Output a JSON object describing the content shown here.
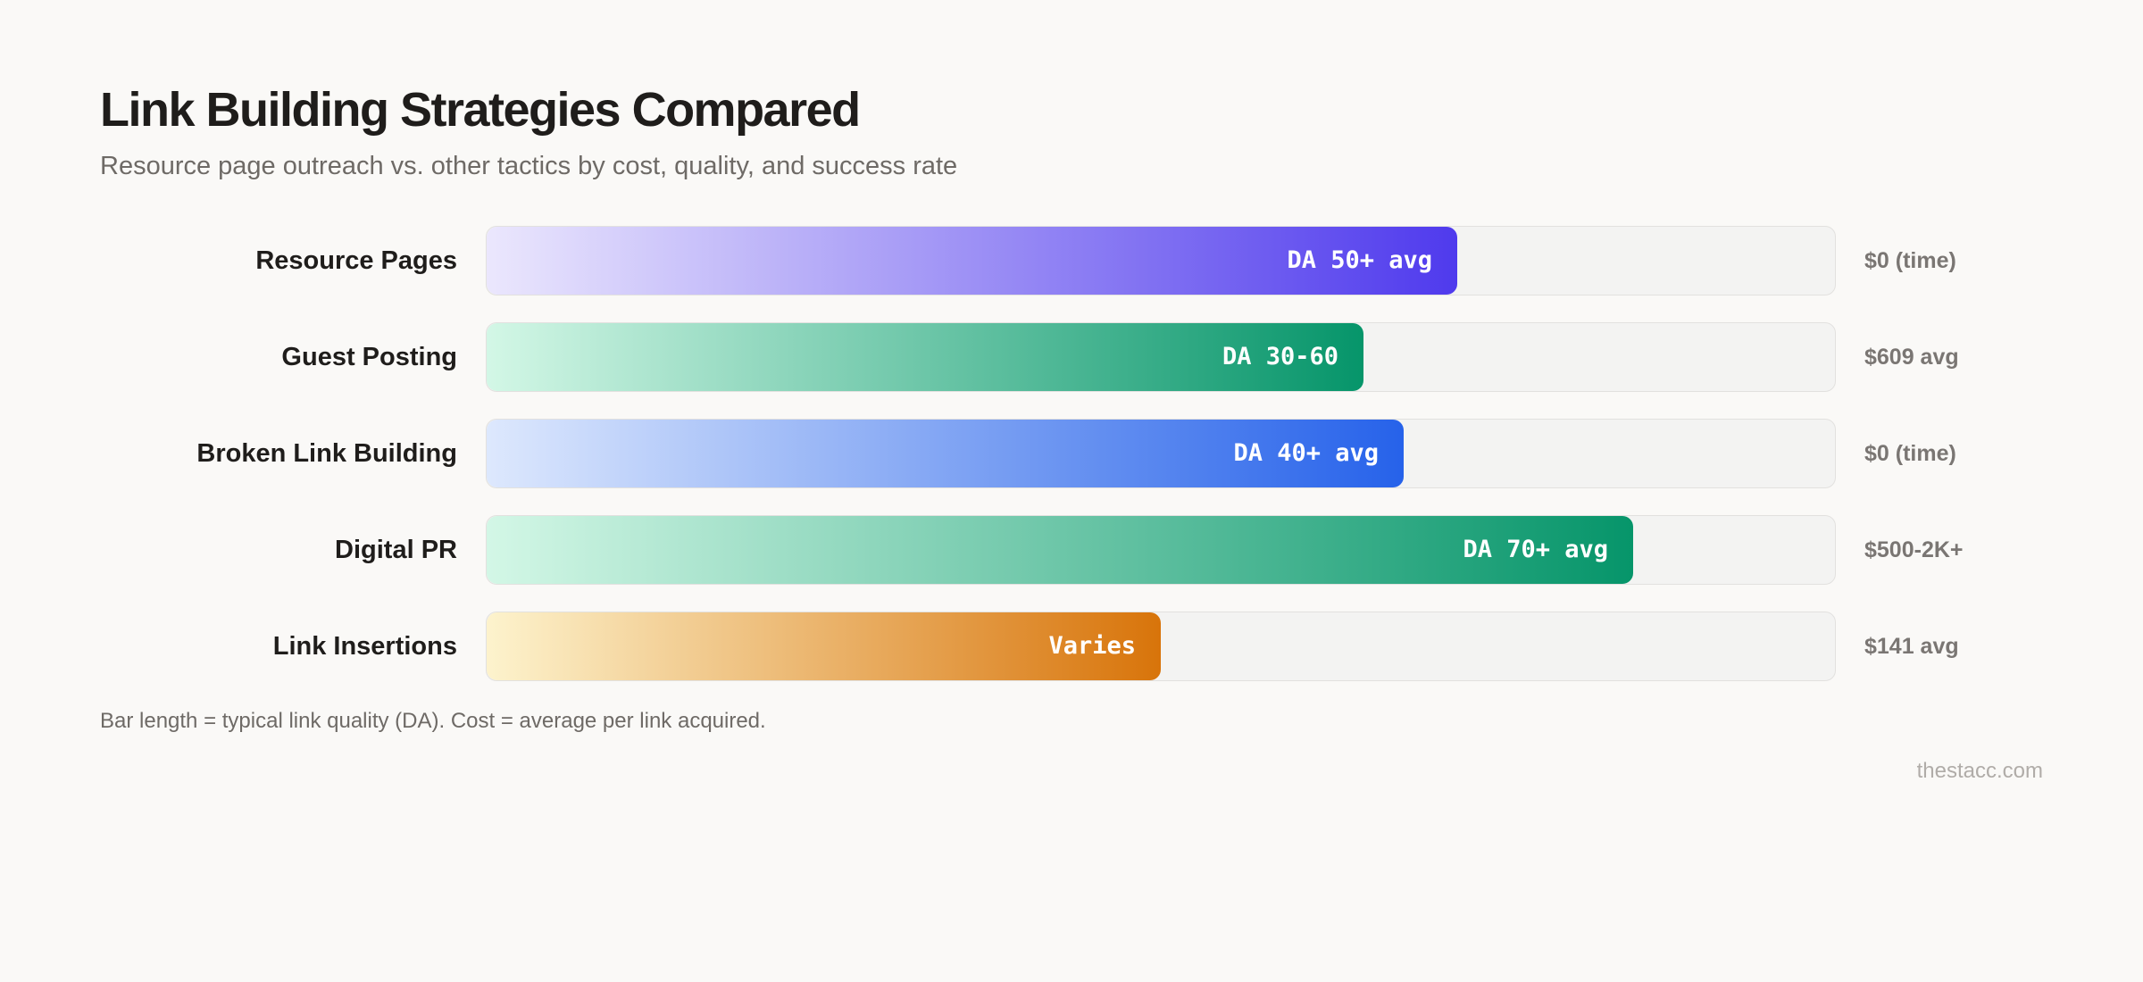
{
  "chart_data": {
    "type": "bar",
    "orientation": "horizontal",
    "title": "Link Building Strategies Compared",
    "subtitle": "Resource page outreach vs. other tactics by cost, quality, and success rate",
    "xlabel": "",
    "ylabel": "",
    "xlim": [
      0,
      100
    ],
    "grid": false,
    "categories": [
      "Resource Pages",
      "Guest Posting",
      "Broken Link Building",
      "Digital PR",
      "Link Insertions"
    ],
    "values": [
      72,
      65,
      68,
      85,
      50
    ],
    "value_labels": [
      "DA 50+ avg",
      "DA 30-60",
      "DA 40+ avg",
      "DA 70+ avg",
      "Varies"
    ],
    "costs": [
      "$0 (time)",
      "$609 avg",
      "$0 (time)",
      "$500-2K+",
      "$141 avg"
    ],
    "colors": [
      {
        "start": "#ebe7fd",
        "end": "#4f3aed"
      },
      {
        "start": "#d3f7e6",
        "end": "#06956a"
      },
      {
        "start": "#dde8fd",
        "end": "#2662ea"
      },
      {
        "start": "#d3f7e6",
        "end": "#06956a"
      },
      {
        "start": "#fdf3cd",
        "end": "#d8740a"
      }
    ],
    "footnote": "Bar length = typical link quality (DA). Cost = average per link acquired.",
    "source": "thestacc.com"
  }
}
